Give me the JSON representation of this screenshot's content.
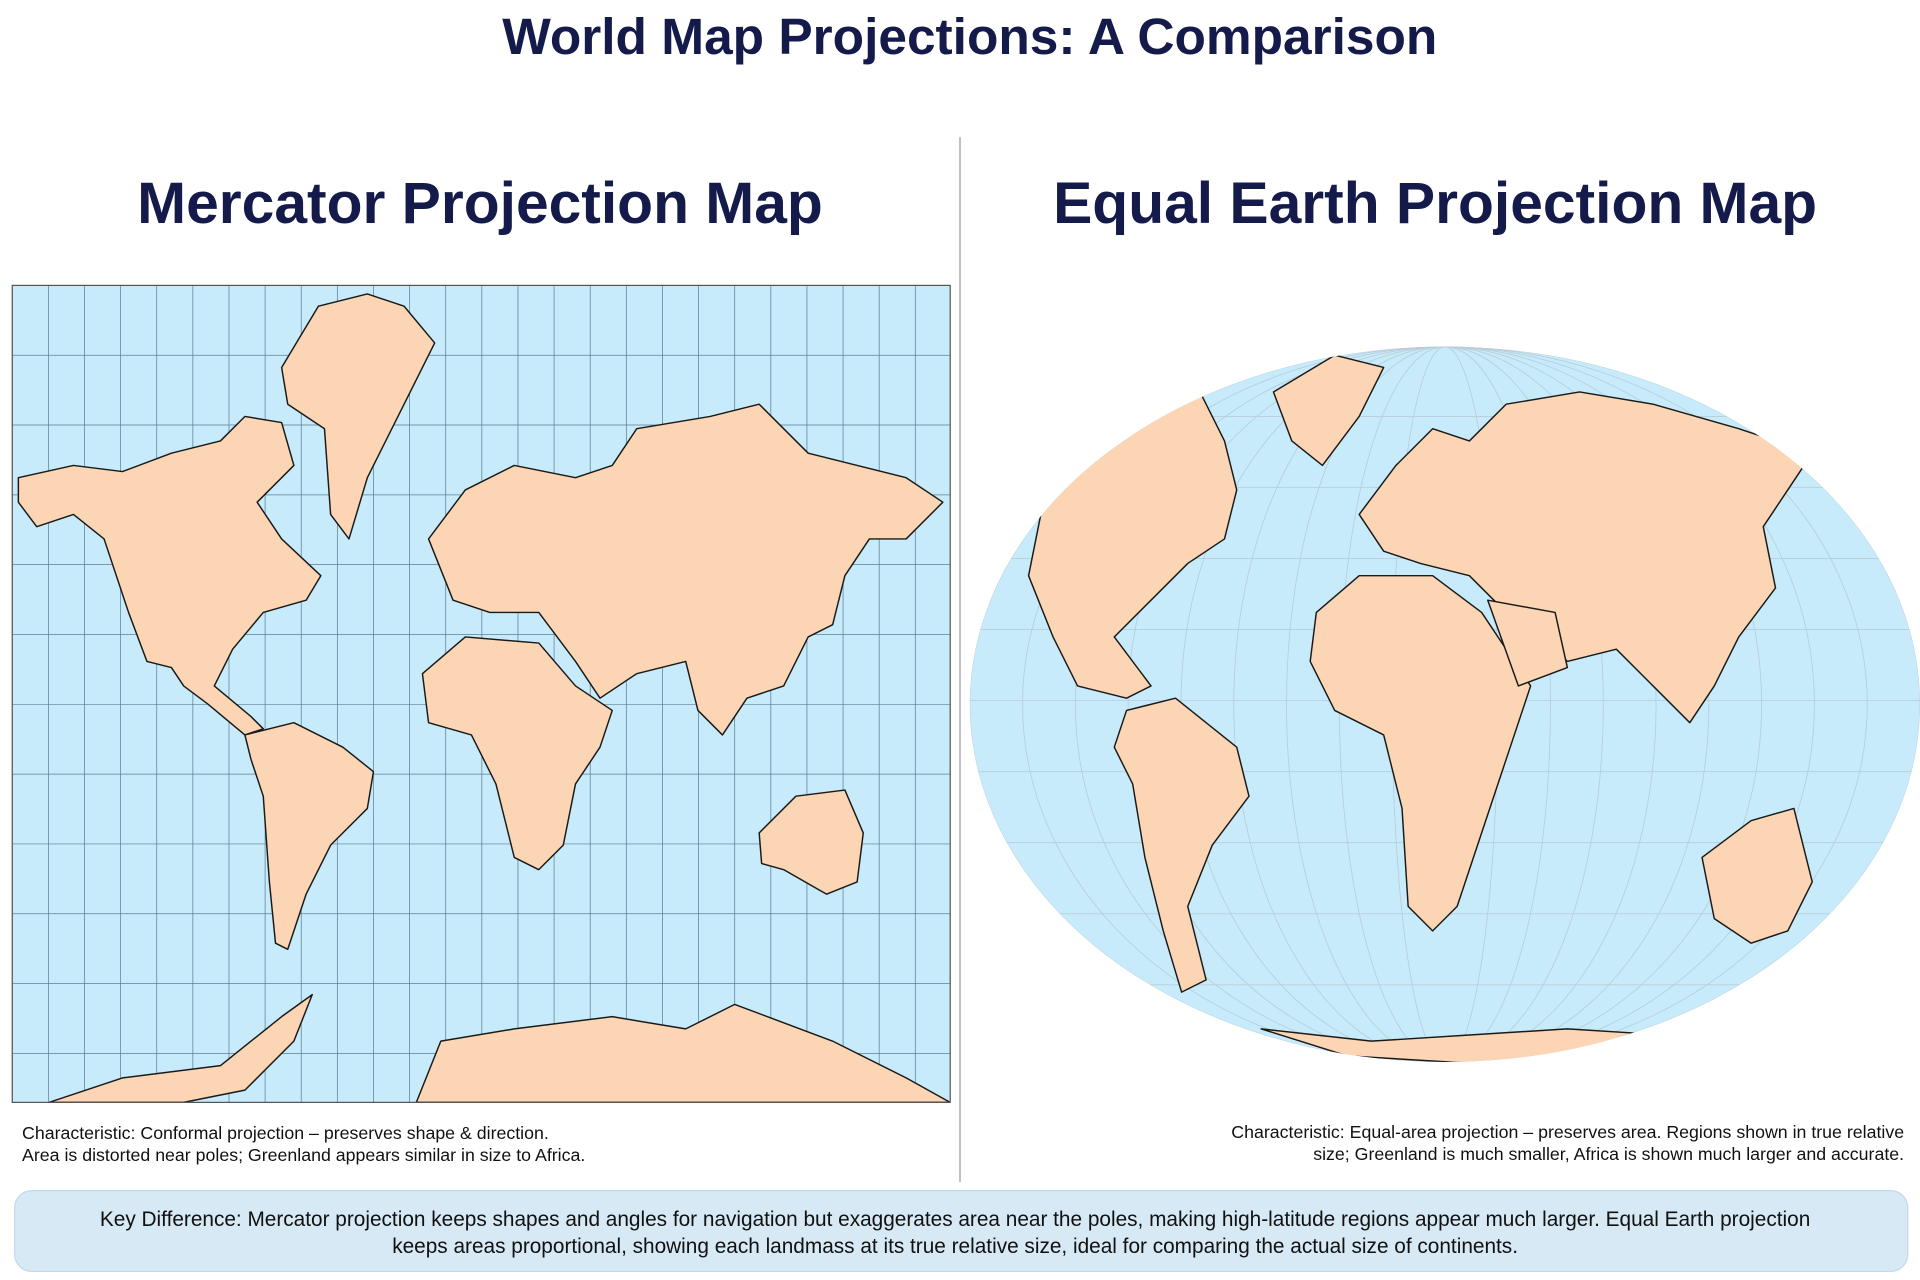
{
  "header": {
    "title": "World Map Projections: A Comparison"
  },
  "panels": [
    {
      "title": "Mercator Projection Map",
      "characteristic": [
        "Characteristic: Conformal projection – preserves shape & direction.",
        "Area is distorted near poles; Greenland appears similar in size to Africa."
      ]
    },
    {
      "title": "Equal Earth Projection Map",
      "characteristic": [
        "Characteristic: Equal-area projection – preserves area. Regions shown in true relative",
        "size; Greenland is much smaller, Africa is shown much larger and accurate."
      ]
    }
  ],
  "key_difference": [
    "Key Difference: Mercator projection keeps shapes and angles for navigation but exaggerates area near the poles, making high-latitude regions appear much larger. Equal Earth projection",
    "keeps areas proportional, showing each landmass at its true relative size, ideal for comparing the actual size of continents."
  ]
}
